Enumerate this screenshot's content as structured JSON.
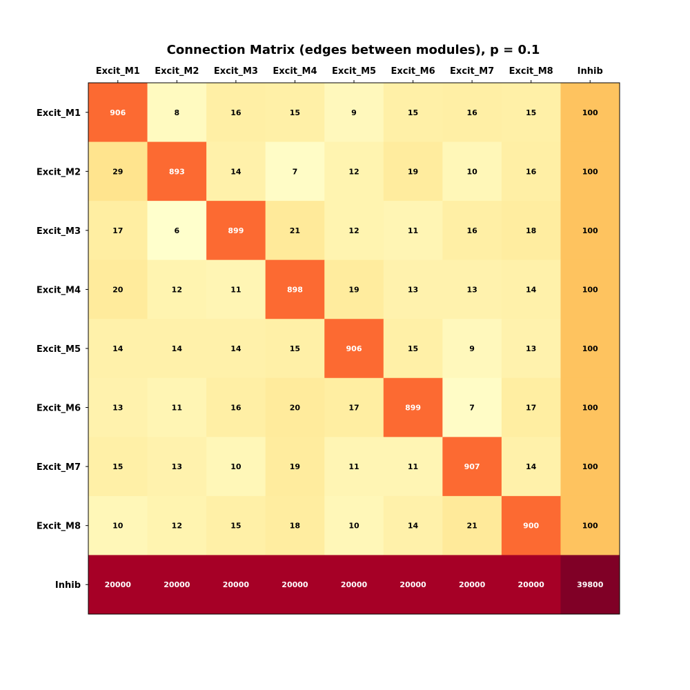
{
  "chart_data": {
    "type": "heatmap",
    "title": "Connection Matrix (edges between modules), p = 0.1",
    "xlabel": "",
    "ylabel": "",
    "x_categories": [
      "Excit_M1",
      "Excit_M2",
      "Excit_M3",
      "Excit_M4",
      "Excit_M5",
      "Excit_M6",
      "Excit_M7",
      "Excit_M8",
      "Inhib"
    ],
    "y_categories": [
      "Excit_M1",
      "Excit_M2",
      "Excit_M3",
      "Excit_M4",
      "Excit_M5",
      "Excit_M6",
      "Excit_M7",
      "Excit_M8",
      "Inhib"
    ],
    "values": [
      [
        906,
        8,
        16,
        15,
        9,
        15,
        16,
        15,
        100
      ],
      [
        29,
        893,
        14,
        7,
        12,
        19,
        10,
        16,
        100
      ],
      [
        17,
        6,
        899,
        21,
        12,
        11,
        16,
        18,
        100
      ],
      [
        20,
        12,
        11,
        898,
        19,
        13,
        13,
        14,
        100
      ],
      [
        14,
        14,
        14,
        15,
        906,
        15,
        9,
        13,
        100
      ],
      [
        13,
        11,
        16,
        20,
        17,
        899,
        7,
        17,
        100
      ],
      [
        15,
        13,
        10,
        19,
        11,
        11,
        907,
        14,
        100
      ],
      [
        10,
        12,
        15,
        18,
        10,
        14,
        21,
        900,
        100
      ],
      [
        20000,
        20000,
        20000,
        20000,
        20000,
        20000,
        20000,
        20000,
        39800
      ]
    ],
    "x_axis_position": "top",
    "colormap": "YlOrRd",
    "colorscale": "log",
    "grid": false,
    "legend": "none"
  }
}
